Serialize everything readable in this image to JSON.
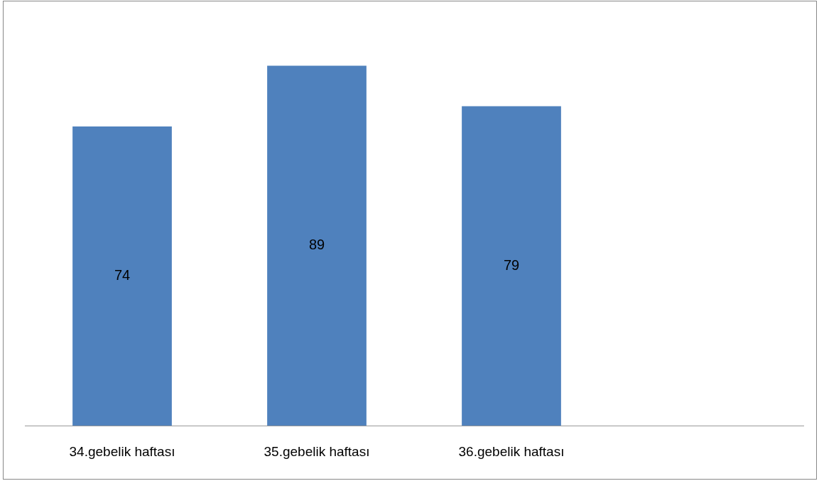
{
  "chart_data": {
    "type": "bar",
    "categories": [
      "34.gebelik haftası",
      "35.gebelik haftası",
      "36.gebelik haftası",
      null
    ],
    "values": [
      74,
      89,
      79,
      null
    ],
    "color": "#4f81bd",
    "data_labels": true
  }
}
